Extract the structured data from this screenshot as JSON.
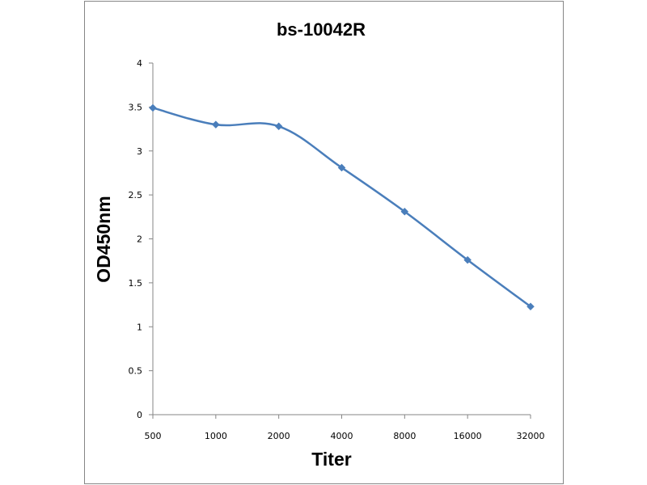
{
  "chart_data": {
    "type": "line",
    "title": "bs-10042R",
    "xlabel": "Titer",
    "ylabel": "OD450nm",
    "categories": [
      "500",
      "1000",
      "2000",
      "4000",
      "8000",
      "16000",
      "32000"
    ],
    "series": [
      {
        "values": [
          3.49,
          3.3,
          3.28,
          2.81,
          2.31,
          1.76,
          1.23
        ],
        "color": "#4a7ebb",
        "marker": "diamond",
        "smooth": true
      }
    ],
    "ylim": [
      0,
      4
    ],
    "yticks": [
      "0",
      "0.5",
      "1",
      "1.5",
      "2",
      "2.5",
      "3",
      "3.5",
      "4"
    ],
    "grid": false,
    "legend": "none",
    "frame_color": "#868686",
    "axis_color": "#868686"
  }
}
